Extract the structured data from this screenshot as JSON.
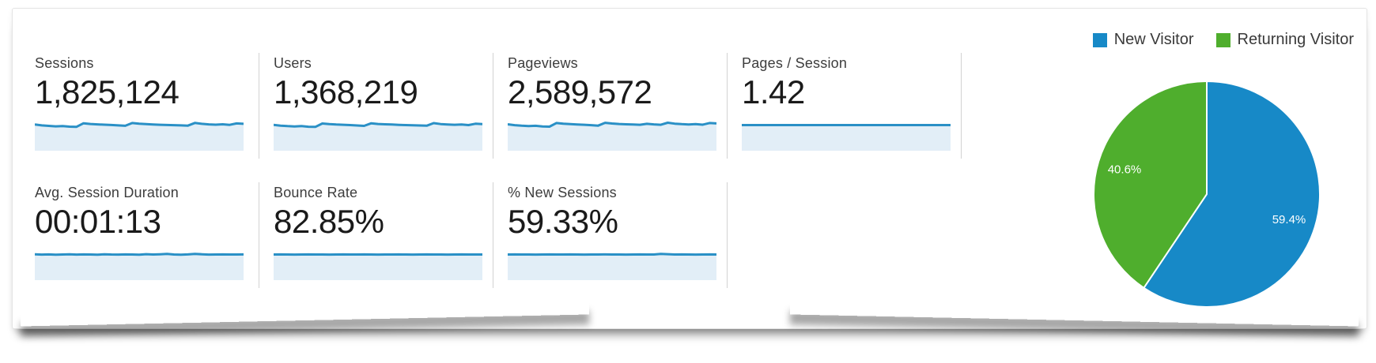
{
  "style": {
    "spark_line": "#2a90c6",
    "spark_fill": "#e2eef7",
    "divider_color": "#d2d2d2",
    "label_color": "#3d3d3d",
    "value_color": "#1a1a1a"
  },
  "metrics": {
    "row1": [
      {
        "label": "Sessions",
        "value": "1,825,124",
        "spark": [
          0.55,
          0.47,
          0.42,
          0.38,
          0.41,
          0.35,
          0.33,
          0.68,
          0.61,
          0.57,
          0.54,
          0.51,
          0.47,
          0.43,
          0.7,
          0.63,
          0.59,
          0.56,
          0.53,
          0.51,
          0.49,
          0.47,
          0.45,
          0.71,
          0.62,
          0.57,
          0.54,
          0.58,
          0.52,
          0.66,
          0.62
        ]
      },
      {
        "label": "Users",
        "value": "1,368,219",
        "spark": [
          0.52,
          0.45,
          0.4,
          0.37,
          0.4,
          0.34,
          0.32,
          0.65,
          0.59,
          0.55,
          0.53,
          0.5,
          0.46,
          0.42,
          0.67,
          0.61,
          0.58,
          0.55,
          0.52,
          0.5,
          0.48,
          0.46,
          0.44,
          0.69,
          0.6,
          0.56,
          0.53,
          0.56,
          0.5,
          0.63,
          0.6
        ]
      },
      {
        "label": "Pageviews",
        "value": "2,589,572",
        "spark": [
          0.58,
          0.49,
          0.44,
          0.4,
          0.43,
          0.37,
          0.35,
          0.7,
          0.63,
          0.59,
          0.56,
          0.53,
          0.49,
          0.45,
          0.72,
          0.65,
          0.61,
          0.58,
          0.55,
          0.53,
          0.62,
          0.57,
          0.53,
          0.73,
          0.64,
          0.59,
          0.56,
          0.6,
          0.54,
          0.7,
          0.66
        ]
      },
      {
        "label": "Pages / Session",
        "value": "1.42",
        "spark": [
          0.5,
          0.5,
          0.5,
          0.5,
          0.5,
          0.5,
          0.5,
          0.5,
          0.5,
          0.5,
          0.5,
          0.5,
          0.5,
          0.5,
          0.5,
          0.5,
          0.5,
          0.5,
          0.5,
          0.5,
          0.5,
          0.5,
          0.5,
          0.5,
          0.5,
          0.5,
          0.5,
          0.5,
          0.5,
          0.5,
          0.5
        ]
      }
    ],
    "row2": [
      {
        "label": "Avg. Session Duration",
        "value": "00:01:13",
        "spark": [
          0.52,
          0.49,
          0.51,
          0.48,
          0.5,
          0.52,
          0.49,
          0.51,
          0.5,
          0.48,
          0.52,
          0.5,
          0.49,
          0.51,
          0.5,
          0.48,
          0.53,
          0.5,
          0.52,
          0.55,
          0.5,
          0.48,
          0.51,
          0.56,
          0.52,
          0.49,
          0.5,
          0.51,
          0.5,
          0.5,
          0.51
        ]
      },
      {
        "label": "Bounce Rate",
        "value": "82.85%",
        "spark": [
          0.5,
          0.51,
          0.5,
          0.49,
          0.5,
          0.51,
          0.5,
          0.5,
          0.49,
          0.5,
          0.51,
          0.5,
          0.5,
          0.51,
          0.5,
          0.49,
          0.5,
          0.5,
          0.51,
          0.5,
          0.49,
          0.5,
          0.51,
          0.5,
          0.5,
          0.49,
          0.5,
          0.51,
          0.5,
          0.5,
          0.5
        ]
      },
      {
        "label": "% New Sessions",
        "value": "59.33%",
        "spark": [
          0.5,
          0.51,
          0.5,
          0.5,
          0.49,
          0.5,
          0.51,
          0.5,
          0.5,
          0.51,
          0.5,
          0.49,
          0.5,
          0.5,
          0.51,
          0.5,
          0.5,
          0.49,
          0.5,
          0.51,
          0.5,
          0.5,
          0.56,
          0.53,
          0.5,
          0.51,
          0.5,
          0.49,
          0.5,
          0.51,
          0.5
        ]
      }
    ]
  },
  "chart_data": {
    "type": "pie",
    "labels": [
      "New Visitor",
      "Returning Visitor"
    ],
    "values": [
      59.4,
      40.6
    ],
    "display_values": [
      "59.4%",
      "40.6%"
    ],
    "colors": [
      "#1789c7",
      "#4fae2d"
    ],
    "legend_position": "top-right",
    "start_angle_deg": 0,
    "direction": "clockwise",
    "label_radius_ratio": 0.76
  }
}
